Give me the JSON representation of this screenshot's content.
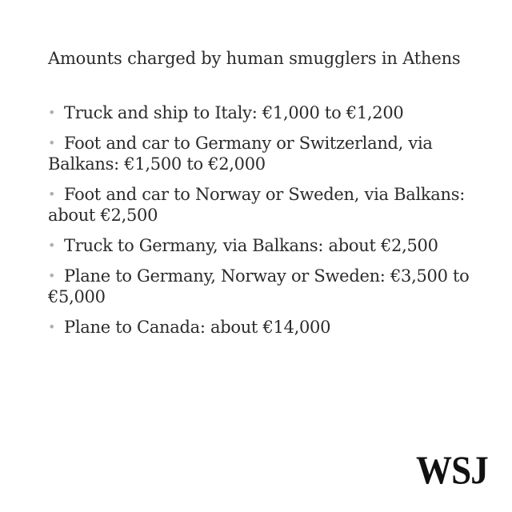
{
  "title": "Amounts charged by human smugglers in Athens",
  "items": [
    "Truck and ship to Italy: €1,000 to €1,200",
    "Foot and car to Germany or Switzerland, via Balkans: €1,500 to €2,000",
    "Foot and car to Norway or Sweden, via Balkans: about €2,500",
    "Truck to Germany, via Balkans: about €2,500",
    "Plane to Germany, Norway or Sweden: €3,500 to €5,000",
    "Plane to Canada: about €14,000"
  ],
  "bullet_glyph": "•",
  "logo_text": "WSJ"
}
